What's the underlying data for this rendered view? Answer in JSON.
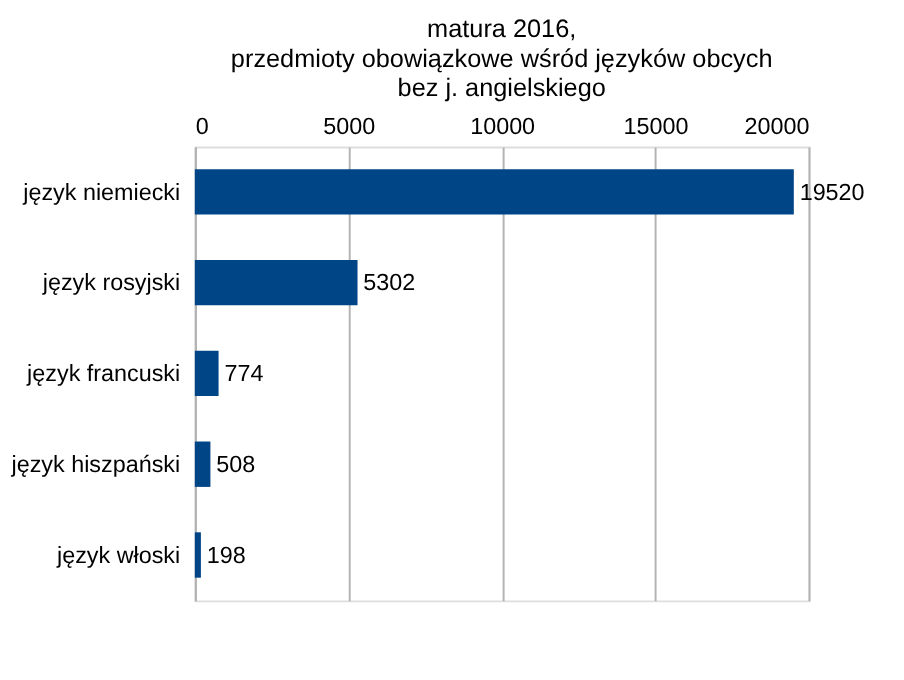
{
  "chart_data": {
    "type": "bar",
    "orientation": "horizontal",
    "title": [
      "matura 2016,",
      "przedmioty obowiązkowe wśród języków obcych",
      "bez j. angielskiego"
    ],
    "categories": [
      "język niemiecki",
      "język rosyjski",
      "język francuski",
      "język hiszpański",
      "język włoski"
    ],
    "values": [
      19520,
      5302,
      774,
      508,
      198
    ],
    "color": "#004586",
    "xlim": [
      0,
      20000
    ],
    "xticks": [
      0,
      5000,
      10000,
      15000,
      20000
    ],
    "grid": "x",
    "data_labels": true
  }
}
